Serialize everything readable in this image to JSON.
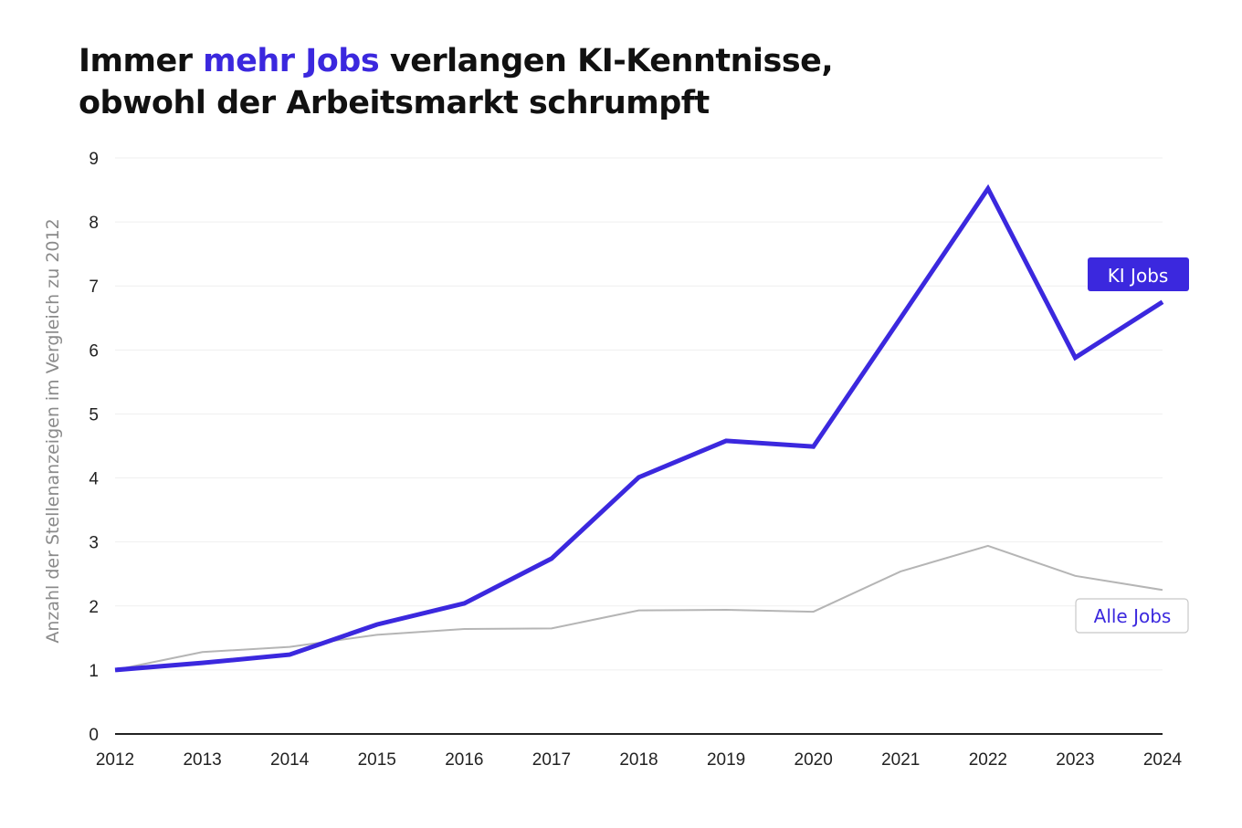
{
  "title": {
    "part1": "Immer ",
    "highlight": "mehr Jobs",
    "part2": " verlangen KI-Kenntnisse,",
    "line2": "obwohl der Arbeitsmarkt schrumpft"
  },
  "chart_data": {
    "type": "line",
    "title": "Immer mehr Jobs verlangen KI-Kenntnisse, obwohl der Arbeitsmarkt schrumpft",
    "xlabel": "",
    "ylabel": "Anzahl der Stellenanzeigen im Vergleich zu 2012",
    "x": [
      "2012",
      "2013",
      "2014",
      "2015",
      "2016",
      "2017",
      "2018",
      "2019",
      "2020",
      "2021",
      "2022",
      "2023",
      "2024"
    ],
    "yticks": [
      "0",
      "1",
      "2",
      "3",
      "4",
      "5",
      "6",
      "7",
      "8",
      "9"
    ],
    "ylim": [
      0,
      9
    ],
    "grid": true,
    "legend": "inline labels at line ends (right)",
    "series": [
      {
        "name": "KI Jobs",
        "color": "#3b28de",
        "values": [
          1.0,
          1.11,
          1.24,
          1.71,
          2.04,
          2.74,
          4.01,
          4.58,
          4.49,
          6.5,
          8.52,
          5.88,
          6.75
        ]
      },
      {
        "name": "Alle Jobs",
        "color": "#b5b5b5",
        "values": [
          1.0,
          1.28,
          1.36,
          1.55,
          1.64,
          1.65,
          1.93,
          1.94,
          1.91,
          2.54,
          2.94,
          2.47,
          2.25
        ]
      }
    ]
  }
}
